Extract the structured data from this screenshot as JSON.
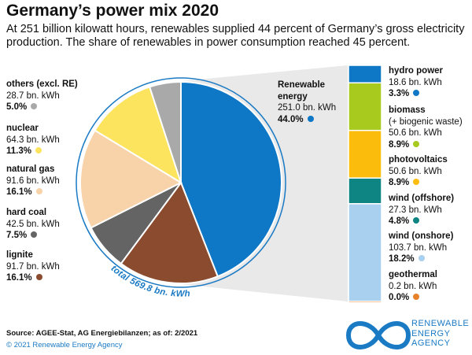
{
  "title": "Germany’s power mix 2020",
  "subtitle": "At 251 billion kilowatt hours, renewables supplied 44 percent of Germany’s gross electricity production. The share of renewables in power consumption reached 45 percent.",
  "chart_data": {
    "type": "pie",
    "total_label": "total 569.8 bn. kWh",
    "slices": [
      {
        "name": "Renewable energy",
        "value": 251.0,
        "value_label": "251.0 bn. kWh",
        "percent_label": "44.0%",
        "color": "#0f78c6"
      },
      {
        "name": "lignite",
        "value": 91.7,
        "value_label": "91.7 bn. kWh",
        "percent_label": "16.1%",
        "color": "#8a4b2e"
      },
      {
        "name": "hard coal",
        "value": 42.5,
        "value_label": "42.5 bn. kWh",
        "percent_label": "7.5%",
        "color": "#646464"
      },
      {
        "name": "natural gas",
        "value": 91.6,
        "value_label": "91.6 bn. kWh",
        "percent_label": "16.1%",
        "color": "#f8d2a8"
      },
      {
        "name": "nuclear",
        "value": 64.3,
        "value_label": "64.3 bn. kWh",
        "percent_label": "11.3%",
        "color": "#fce45e"
      },
      {
        "name": "others (excl. RE)",
        "value": 28.7,
        "value_label": "28.7 bn. kWh",
        "percent_label": "5.0%",
        "color": "#a9a9a9"
      }
    ],
    "renewables_breakdown": [
      {
        "name": "hydro power",
        "sub": "",
        "value": 18.6,
        "value_label": "18.6 bn. kWh",
        "percent_label": "3.3%",
        "color": "#0f78c6"
      },
      {
        "name": "biomass",
        "sub": "(+ biogenic waste)",
        "value": 50.6,
        "value_label": "50.6 bn. kWh",
        "percent_label": "8.9%",
        "color": "#a8c91e"
      },
      {
        "name": "photovoltaics",
        "sub": "",
        "value": 50.6,
        "value_label": "50.6 bn. kWh",
        "percent_label": "8.9%",
        "color": "#fbbc0b"
      },
      {
        "name": "wind (offshore)",
        "sub": "",
        "value": 27.3,
        "value_label": "27.3 bn. kWh",
        "percent_label": "4.8%",
        "color": "#0e8583"
      },
      {
        "name": "wind (onshore)",
        "sub": "",
        "value": 103.7,
        "value_label": "103.7 bn. kWh",
        "percent_label": "18.2%",
        "color": "#a9d0ef"
      },
      {
        "name": "geothermal",
        "sub": "",
        "value": 0.2,
        "value_label": "0.2 bn. kWh",
        "percent_label": "0.0%",
        "color": "#e8822a"
      }
    ]
  },
  "source": "Source: AGEE-Stat, AG Energiebilanzen; as of: 2/2021",
  "copyright": "© 2021 Renewable Energy Agency",
  "logo": {
    "line1": "RENEWABLE",
    "line2": "ENERGY",
    "line3": "AGENCY",
    "color": "#1a7ac4"
  }
}
